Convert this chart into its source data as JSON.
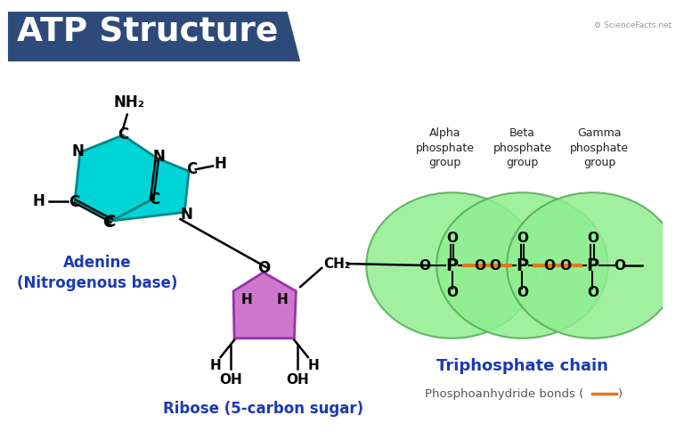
{
  "title": "ATP Structure",
  "title_bg_color": "#2e4a7a",
  "title_text_color": "#ffffff",
  "bg_color": "#ffffff",
  "adenine_fill": "#00d4d4",
  "adenine_stroke": "#008888",
  "ribose_fill": "#cc77cc",
  "ribose_stroke": "#9933aa",
  "phosphate_fill": "#90ee90",
  "phosphate_stroke": "#55aa55",
  "adenine_label_color": "#1a3ab0",
  "ribose_label_color": "#1a3ab0",
  "phosphate_label_color": "#1a3ab0",
  "bond_color": "#e07820",
  "sciencefacts_text": "ScienceFacts.net",
  "phosphate_chain_label": "Triphosphate chain",
  "ribose_label": "Ribose (5-carbon sugar)",
  "adenine_label": "Adenine\n(Nitrogenous base)",
  "phosphoanhydride_label": "Phosphoanhydride bonds (",
  "alpha_label": "Alpha\nphosphate\ngroup",
  "beta_label": "Beta\nphosphate\ngroup",
  "gamma_label": "Gamma\nphosphate\ngroup"
}
